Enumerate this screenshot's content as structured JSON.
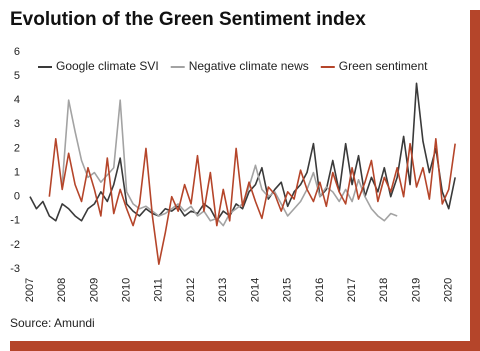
{
  "chart_data": {
    "type": "line",
    "title": "Evolution of the Green Sentiment index",
    "source": "Source: Amundi",
    "x": [
      2007.0,
      2007.2,
      2007.4,
      2007.6,
      2007.8,
      2008.0,
      2008.2,
      2008.4,
      2008.6,
      2008.8,
      2009.0,
      2009.2,
      2009.4,
      2009.6,
      2009.8,
      2010.0,
      2010.2,
      2010.4,
      2010.6,
      2010.8,
      2011.0,
      2011.2,
      2011.4,
      2011.6,
      2011.8,
      2012.0,
      2012.2,
      2012.4,
      2012.6,
      2012.8,
      2013.0,
      2013.2,
      2013.4,
      2013.6,
      2013.8,
      2014.0,
      2014.2,
      2014.4,
      2014.6,
      2014.8,
      2015.0,
      2015.2,
      2015.4,
      2015.6,
      2015.8,
      2016.0,
      2016.2,
      2016.4,
      2016.6,
      2016.8,
      2017.0,
      2017.2,
      2017.4,
      2017.6,
      2017.8,
      2018.0,
      2018.2,
      2018.4,
      2018.6,
      2018.8,
      2019.0,
      2019.2,
      2019.4,
      2019.6,
      2019.8,
      2020.0,
      2020.2
    ],
    "series": [
      {
        "name": "Google climate SVI",
        "color": "#3a3a3a",
        "values": [
          0.0,
          -0.5,
          -0.2,
          -0.8,
          -1.0,
          -0.3,
          -0.5,
          -0.8,
          -1.0,
          -0.5,
          -0.3,
          0.2,
          -0.2,
          0.5,
          1.6,
          -0.3,
          -0.6,
          -0.8,
          -0.5,
          -0.7,
          -0.8,
          -0.5,
          -0.6,
          -0.4,
          -0.8,
          -0.6,
          -0.7,
          -0.3,
          -0.5,
          -1.0,
          -0.6,
          -0.8,
          -0.3,
          -0.5,
          0.2,
          0.5,
          1.2,
          -0.1,
          0.3,
          0.6,
          -0.4,
          0.2,
          0.5,
          1.0,
          2.2,
          0.0,
          0.3,
          1.5,
          0.2,
          2.2,
          0.5,
          1.7,
          0.0,
          0.8,
          0.2,
          1.2,
          0.0,
          0.8,
          2.5,
          0.5,
          4.7,
          2.3,
          1.0,
          2.0,
          0.2,
          -0.5,
          0.8
        ]
      },
      {
        "name": "Negative climate news",
        "color": "#a3a3a3",
        "values": [
          null,
          null,
          null,
          null,
          null,
          0.5,
          4.0,
          2.7,
          1.5,
          0.8,
          1.0,
          0.6,
          0.9,
          1.2,
          4.0,
          0.2,
          -0.3,
          -0.5,
          -0.4,
          -0.6,
          -0.8,
          -0.7,
          -0.5,
          -0.3,
          -0.6,
          -0.4,
          -0.8,
          -0.6,
          -1.0,
          -0.9,
          -1.2,
          -0.7,
          -0.5,
          -0.3,
          0.4,
          1.3,
          0.3,
          0.0,
          0.2,
          -0.3,
          -0.8,
          -0.5,
          -0.2,
          0.3,
          1.0,
          0.0,
          0.4,
          0.2,
          -0.2,
          0.3,
          -0.2,
          0.7,
          0.0,
          -0.5,
          -0.8,
          -1.0,
          -0.7,
          -0.8,
          null,
          null,
          null,
          null,
          null,
          null,
          null,
          null,
          null
        ]
      },
      {
        "name": "Green sentiment",
        "color": "#b5452a",
        "values": [
          null,
          null,
          null,
          0.0,
          2.4,
          0.3,
          1.8,
          0.5,
          -0.2,
          1.2,
          0.3,
          -0.8,
          1.6,
          -0.7,
          0.3,
          -0.5,
          -1.2,
          -0.3,
          2.0,
          -0.8,
          -2.8,
          -1.5,
          0.0,
          -0.6,
          0.5,
          -0.3,
          1.7,
          -0.6,
          1.0,
          -1.2,
          0.3,
          -1.0,
          2.0,
          -0.4,
          0.6,
          -0.2,
          -0.9,
          0.4,
          0.1,
          -0.6,
          0.2,
          -0.1,
          1.1,
          0.3,
          -0.2,
          0.6,
          -0.4,
          1.0,
          0.2,
          -0.3,
          1.2,
          -0.1,
          0.6,
          1.5,
          -0.2,
          0.8,
          0.2,
          1.2,
          0.0,
          2.2,
          0.4,
          1.2,
          -0.1,
          2.4,
          -0.3,
          0.3,
          2.2
        ]
      }
    ],
    "xlim": [
      2007,
      2020.35
    ],
    "xticks": [
      2007,
      2008,
      2009,
      2010,
      2011,
      2012,
      2013,
      2014,
      2015,
      2016,
      2017,
      2018,
      2019,
      2020
    ],
    "ylim": [
      -3,
      6
    ],
    "yticks": [
      -3,
      -2,
      -1,
      0,
      1,
      2,
      3,
      4,
      5,
      6
    ],
    "grid": false,
    "legend": "top"
  }
}
